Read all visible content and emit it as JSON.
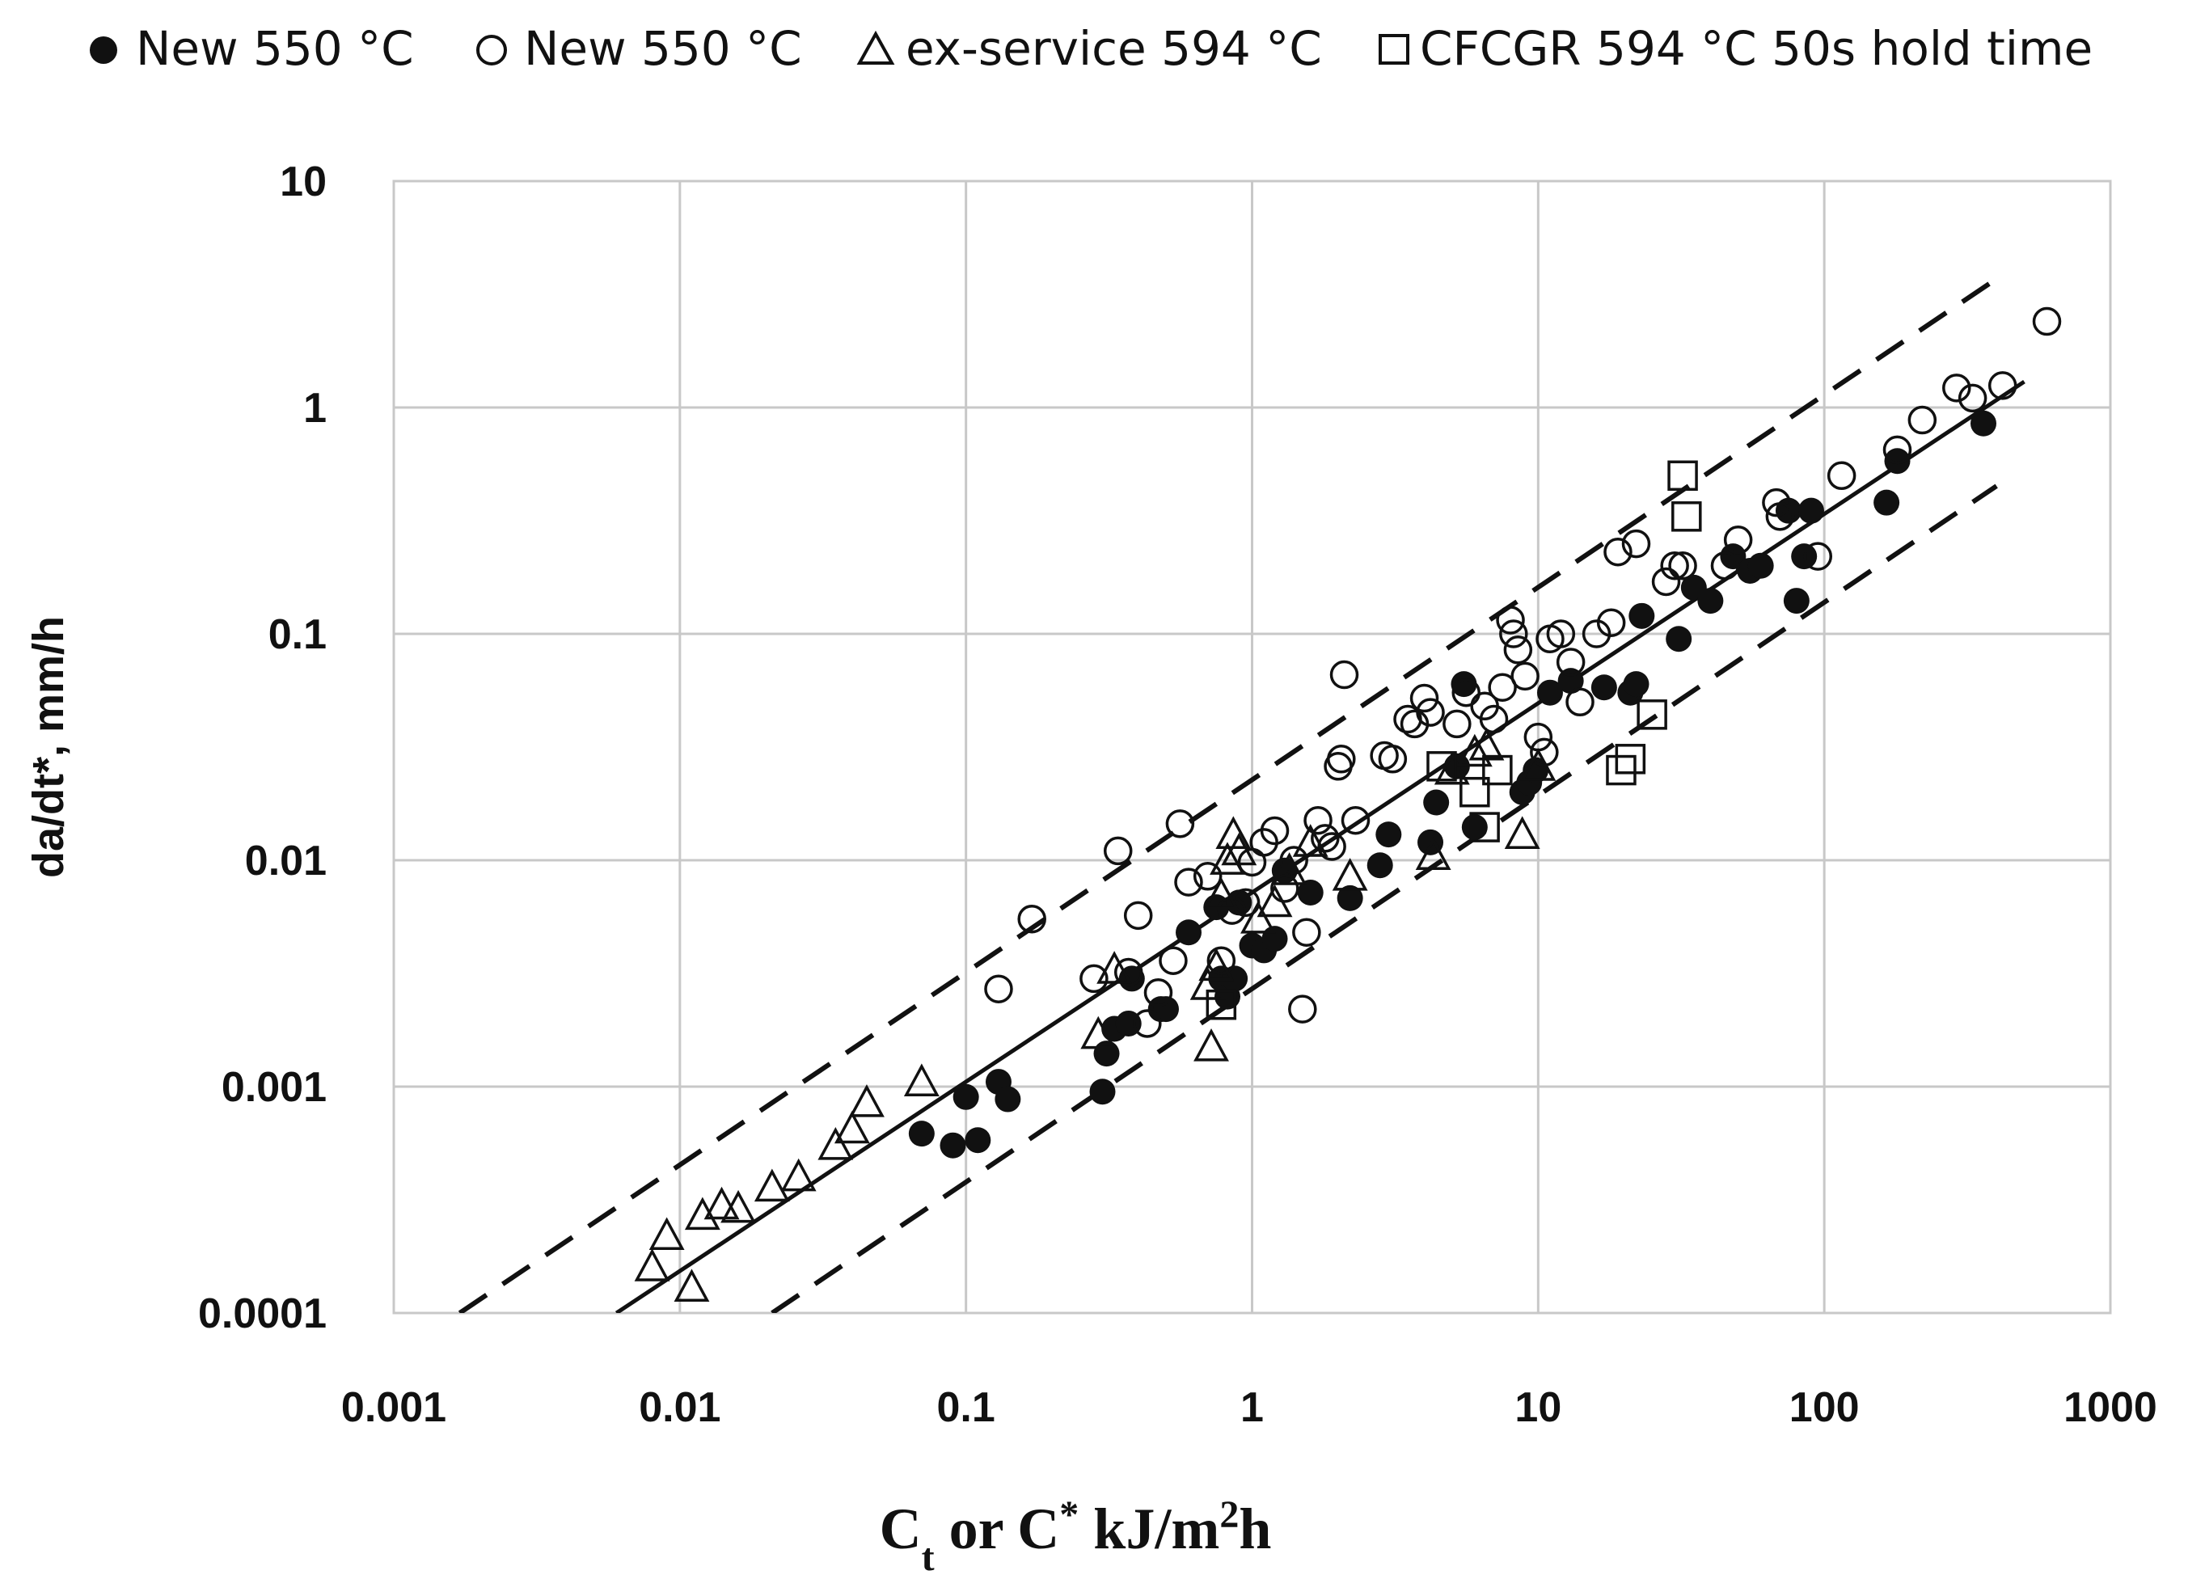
{
  "chart_data": {
    "type": "scatter",
    "title": "",
    "xlabel": {
      "base": "C",
      "sub": "t",
      "mid": " or C",
      "star": "*",
      "unit": " kJ/m",
      "sup": "2",
      "tail": "h"
    },
    "ylabel": "da/dt*, mm/h",
    "x_scale": "log",
    "y_scale": "log",
    "xlim": [
      0.001,
      1000
    ],
    "ylim": [
      0.0001,
      10
    ],
    "x_ticks": [
      0.001,
      0.01,
      0.1,
      1,
      10,
      100,
      1000
    ],
    "x_tick_labels": [
      "0.001",
      "0.01",
      "0.1",
      "1",
      "10",
      "100",
      "1000"
    ],
    "y_ticks": [
      0.0001,
      0.001,
      0.01,
      0.1,
      1,
      10
    ],
    "y_tick_labels": [
      "0.0001",
      "0.001",
      "0.01",
      "0.1",
      "1",
      "10"
    ],
    "grid": true,
    "legend_position": "top",
    "series": [
      {
        "name": "New 550 °C",
        "marker": "filled-circle",
        "points": [
          [
            0.07,
            0.00062
          ],
          [
            0.09,
            0.00055
          ],
          [
            0.1,
            0.0009
          ],
          [
            0.11,
            0.00058
          ],
          [
            0.13,
            0.00105
          ],
          [
            0.14,
            0.00088
          ],
          [
            0.3,
            0.00095
          ],
          [
            0.31,
            0.0014
          ],
          [
            0.33,
            0.0018
          ],
          [
            0.37,
            0.0019
          ],
          [
            0.38,
            0.003
          ],
          [
            0.48,
            0.0022
          ],
          [
            0.5,
            0.0022
          ],
          [
            0.6,
            0.0048
          ],
          [
            0.75,
            0.0062
          ],
          [
            0.78,
            0.003
          ],
          [
            0.82,
            0.0025
          ],
          [
            0.87,
            0.003
          ],
          [
            0.9,
            0.0065
          ],
          [
            1.0,
            0.0042
          ],
          [
            1.1,
            0.004
          ],
          [
            1.2,
            0.0045
          ],
          [
            1.3,
            0.009
          ],
          [
            1.6,
            0.0072
          ],
          [
            2.2,
            0.0068
          ],
          [
            2.8,
            0.0095
          ],
          [
            3.0,
            0.013
          ],
          [
            4.2,
            0.012
          ],
          [
            4.4,
            0.018
          ],
          [
            5.2,
            0.026
          ],
          [
            5.5,
            0.06
          ],
          [
            6.0,
            0.014
          ],
          [
            8.8,
            0.02
          ],
          [
            9.3,
            0.022
          ],
          [
            9.8,
            0.025
          ],
          [
            11,
            0.055
          ],
          [
            13,
            0.062
          ],
          [
            17,
            0.058
          ],
          [
            21,
            0.055
          ],
          [
            22,
            0.06
          ],
          [
            23,
            0.12
          ],
          [
            31,
            0.095
          ],
          [
            35,
            0.16
          ],
          [
            40,
            0.14
          ],
          [
            48,
            0.22
          ],
          [
            55,
            0.19
          ],
          [
            60,
            0.2
          ],
          [
            75,
            0.35
          ],
          [
            80,
            0.14
          ],
          [
            85,
            0.22
          ],
          [
            90,
            0.35
          ],
          [
            165,
            0.38
          ],
          [
            180,
            0.58
          ],
          [
            360,
            0.85
          ]
        ]
      },
      {
        "name": "New 550 °C",
        "marker": "open-circle",
        "points": [
          [
            0.13,
            0.0027
          ],
          [
            0.17,
            0.0055
          ],
          [
            0.28,
            0.003
          ],
          [
            0.34,
            0.011
          ],
          [
            0.37,
            0.0032
          ],
          [
            0.4,
            0.0057
          ],
          [
            0.43,
            0.0019
          ],
          [
            0.47,
            0.0026
          ],
          [
            0.53,
            0.0036
          ],
          [
            0.56,
            0.0145
          ],
          [
            0.6,
            0.008
          ],
          [
            0.7,
            0.0085
          ],
          [
            0.78,
            0.0036
          ],
          [
            0.85,
            0.006
          ],
          [
            0.95,
            0.0065
          ],
          [
            1.0,
            0.0098
          ],
          [
            1.1,
            0.012
          ],
          [
            1.2,
            0.0135
          ],
          [
            1.3,
            0.0075
          ],
          [
            1.4,
            0.01
          ],
          [
            1.5,
            0.0022
          ],
          [
            1.55,
            0.0048
          ],
          [
            1.7,
            0.015
          ],
          [
            1.8,
            0.0125
          ],
          [
            1.9,
            0.0115
          ],
          [
            2.0,
            0.026
          ],
          [
            2.05,
            0.028
          ],
          [
            2.1,
            0.066
          ],
          [
            2.3,
            0.015
          ],
          [
            2.9,
            0.029
          ],
          [
            3.1,
            0.028
          ],
          [
            3.5,
            0.042
          ],
          [
            3.7,
            0.04
          ],
          [
            4.0,
            0.052
          ],
          [
            4.2,
            0.045
          ],
          [
            5.2,
            0.04
          ],
          [
            5.6,
            0.055
          ],
          [
            6.5,
            0.048
          ],
          [
            7.0,
            0.042
          ],
          [
            7.5,
            0.058
          ],
          [
            8.0,
            0.115
          ],
          [
            8.2,
            0.1
          ],
          [
            8.5,
            0.085
          ],
          [
            9.0,
            0.065
          ],
          [
            10,
            0.035
          ],
          [
            10.5,
            0.03
          ],
          [
            11,
            0.095
          ],
          [
            12,
            0.1
          ],
          [
            13,
            0.075
          ],
          [
            14,
            0.05
          ],
          [
            16,
            0.1
          ],
          [
            18,
            0.112
          ],
          [
            19,
            0.23
          ],
          [
            22,
            0.25
          ],
          [
            28,
            0.17
          ],
          [
            30,
            0.2
          ],
          [
            32,
            0.2
          ],
          [
            45,
            0.2
          ],
          [
            50,
            0.26
          ],
          [
            68,
            0.38
          ],
          [
            70,
            0.33
          ],
          [
            95,
            0.22
          ],
          [
            115,
            0.5
          ],
          [
            180,
            0.65
          ],
          [
            220,
            0.88
          ],
          [
            290,
            1.22
          ],
          [
            330,
            1.1
          ],
          [
            420,
            1.25
          ],
          [
            600,
            2.4
          ]
        ]
      },
      {
        "name": "ex-service 594 °C",
        "marker": "open-triangle",
        "points": [
          [
            0.008,
            0.00016
          ],
          [
            0.009,
            0.00022
          ],
          [
            0.011,
            0.00013
          ],
          [
            0.012,
            0.00027
          ],
          [
            0.014,
            0.0003
          ],
          [
            0.016,
            0.00029
          ],
          [
            0.021,
            0.00036
          ],
          [
            0.026,
            0.0004
          ],
          [
            0.035,
            0.00055
          ],
          [
            0.04,
            0.00065
          ],
          [
            0.045,
            0.00085
          ],
          [
            0.07,
            0.00105
          ],
          [
            0.29,
            0.0017
          ],
          [
            0.33,
            0.0033
          ],
          [
            0.7,
            0.0028
          ],
          [
            0.72,
            0.0015
          ],
          [
            0.75,
            0.0034
          ],
          [
            0.78,
            0.007
          ],
          [
            0.82,
            0.01
          ],
          [
            0.86,
            0.013
          ],
          [
            0.9,
            0.011
          ],
          [
            1.05,
            0.0055
          ],
          [
            1.2,
            0.0065
          ],
          [
            1.35,
            0.009
          ],
          [
            1.6,
            0.012
          ],
          [
            2.2,
            0.0085
          ],
          [
            4.3,
            0.0105
          ],
          [
            5.0,
            0.025
          ],
          [
            6.0,
            0.03
          ],
          [
            6.6,
            0.032
          ],
          [
            8.8,
            0.013
          ],
          [
            10,
            0.026
          ]
        ]
      },
      {
        "name": "CFCGR 594 °C 50s hold time",
        "marker": "open-square",
        "points": [
          [
            0.78,
            0.0023
          ],
          [
            4.6,
            0.026
          ],
          [
            6.0,
            0.02
          ],
          [
            6.5,
            0.014
          ],
          [
            7.2,
            0.025
          ],
          [
            19.5,
            0.025
          ],
          [
            21,
            0.028
          ],
          [
            25,
            0.044
          ],
          [
            32,
            0.5
          ],
          [
            33,
            0.33
          ]
        ]
      }
    ],
    "fit_lines": [
      {
        "name": "mean fit",
        "style": "solid",
        "points": [
          [
            0.006,
            0.0001
          ],
          [
            500,
            1.3
          ]
        ]
      },
      {
        "name": "upper bound",
        "style": "dashed",
        "points": [
          [
            0.0017,
            0.0001
          ],
          [
            400,
            3.7
          ]
        ]
      },
      {
        "name": "lower bound",
        "style": "dashed",
        "points": [
          [
            0.021,
            0.0001
          ],
          [
            400,
            0.45
          ]
        ]
      }
    ]
  }
}
